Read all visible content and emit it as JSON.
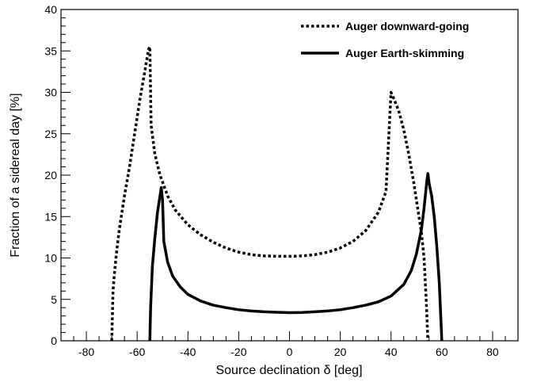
{
  "chart_data": {
    "type": "line",
    "xlabel": "Source declination δ [deg]",
    "ylabel": "Fraction of a sidereal day [%]",
    "xlim": [
      -90,
      90
    ],
    "ylim": [
      0,
      40
    ],
    "x_ticks": [
      -80,
      -60,
      -40,
      -20,
      0,
      20,
      40,
      60,
      80
    ],
    "y_ticks": [
      0,
      5,
      10,
      15,
      20,
      25,
      30,
      35,
      40
    ],
    "legend_position": "top-right",
    "series": [
      {
        "name": "Auger downward-going",
        "style": "dotted",
        "color": "#000000",
        "points": [
          [
            -70,
            0
          ],
          [
            -69.5,
            6
          ],
          [
            -69,
            8
          ],
          [
            -68,
            11
          ],
          [
            -67,
            13.5
          ],
          [
            -65,
            17.5
          ],
          [
            -63,
            21
          ],
          [
            -61,
            25
          ],
          [
            -59,
            29
          ],
          [
            -57,
            32.5
          ],
          [
            -55.5,
            35.2
          ],
          [
            -55,
            35.5
          ],
          [
            -54.5,
            26
          ],
          [
            -53,
            22.5
          ],
          [
            -51,
            20
          ],
          [
            -48,
            17.5
          ],
          [
            -45,
            15.8
          ],
          [
            -40,
            14
          ],
          [
            -35,
            12.8
          ],
          [
            -30,
            11.9
          ],
          [
            -25,
            11.2
          ],
          [
            -20,
            10.7
          ],
          [
            -15,
            10.4
          ],
          [
            -10,
            10.25
          ],
          [
            -5,
            10.2
          ],
          [
            0,
            10.2
          ],
          [
            5,
            10.25
          ],
          [
            10,
            10.4
          ],
          [
            15,
            10.7
          ],
          [
            20,
            11.2
          ],
          [
            25,
            12
          ],
          [
            30,
            13.3
          ],
          [
            35,
            15.5
          ],
          [
            38,
            18
          ],
          [
            39.5,
            27
          ],
          [
            40,
            30
          ],
          [
            41,
            29.3
          ],
          [
            43,
            27.8
          ],
          [
            45,
            25.5
          ],
          [
            47,
            22.5
          ],
          [
            49,
            19
          ],
          [
            51,
            15
          ],
          [
            52,
            13
          ],
          [
            53,
            10
          ],
          [
            53.5,
            7
          ],
          [
            54,
            4
          ],
          [
            54.5,
            0
          ]
        ]
      },
      {
        "name": "Auger Earth-skimming",
        "style": "solid",
        "color": "#000000",
        "points": [
          [
            -55,
            0
          ],
          [
            -54.7,
            4
          ],
          [
            -54,
            9
          ],
          [
            -53,
            12.5
          ],
          [
            -52,
            15.5
          ],
          [
            -51,
            17.5
          ],
          [
            -50.5,
            18.5
          ],
          [
            -50,
            17
          ],
          [
            -49.5,
            12
          ],
          [
            -48,
            9.5
          ],
          [
            -46,
            7.8
          ],
          [
            -43,
            6.5
          ],
          [
            -40,
            5.6
          ],
          [
            -35,
            4.8
          ],
          [
            -30,
            4.3
          ],
          [
            -25,
            4
          ],
          [
            -20,
            3.75
          ],
          [
            -15,
            3.6
          ],
          [
            -10,
            3.5
          ],
          [
            -5,
            3.45
          ],
          [
            0,
            3.4
          ],
          [
            5,
            3.42
          ],
          [
            10,
            3.5
          ],
          [
            15,
            3.6
          ],
          [
            20,
            3.75
          ],
          [
            25,
            4
          ],
          [
            30,
            4.3
          ],
          [
            35,
            4.7
          ],
          [
            40,
            5.4
          ],
          [
            45,
            6.8
          ],
          [
            48,
            8.5
          ],
          [
            50,
            10.5
          ],
          [
            52,
            13.5
          ],
          [
            53,
            16
          ],
          [
            54,
            19
          ],
          [
            54.5,
            20.2
          ],
          [
            55,
            19
          ],
          [
            56,
            17.5
          ],
          [
            57,
            15
          ],
          [
            58,
            11.5
          ],
          [
            59,
            7
          ],
          [
            59.5,
            3.5
          ],
          [
            60,
            0
          ]
        ]
      }
    ]
  }
}
